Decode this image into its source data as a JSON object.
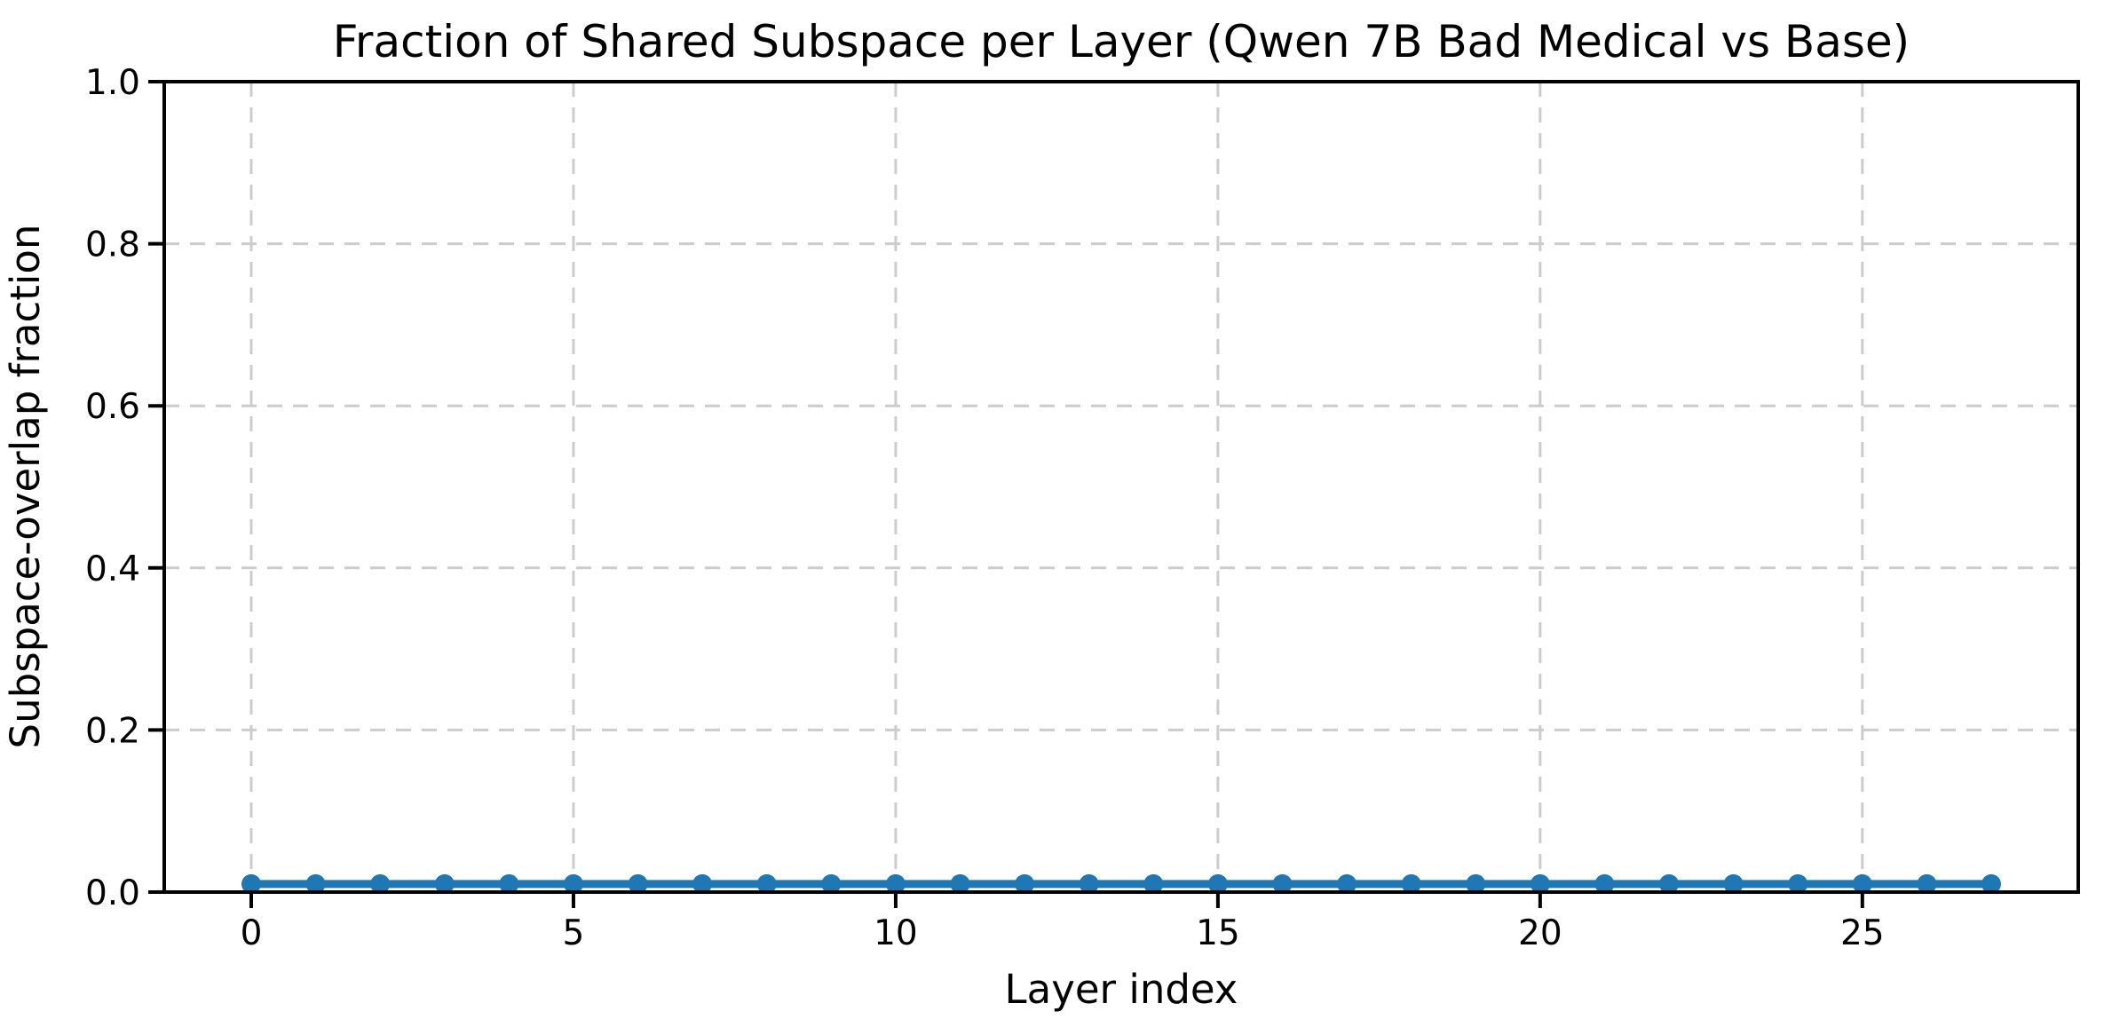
{
  "chart_data": {
    "type": "line",
    "title": "Fraction of Shared Subspace per Layer (Qwen 7B Bad Medical vs Base)",
    "xlabel": "Layer index",
    "ylabel": "Subspace-overlap fraction",
    "x": [
      0,
      1,
      2,
      3,
      4,
      5,
      6,
      7,
      8,
      9,
      10,
      11,
      12,
      13,
      14,
      15,
      16,
      17,
      18,
      19,
      20,
      21,
      22,
      23,
      24,
      25,
      26,
      27
    ],
    "values": [
      0.01,
      0.01,
      0.01,
      0.01,
      0.01,
      0.01,
      0.01,
      0.01,
      0.01,
      0.01,
      0.01,
      0.01,
      0.01,
      0.01,
      0.01,
      0.01,
      0.01,
      0.01,
      0.01,
      0.01,
      0.01,
      0.01,
      0.01,
      0.01,
      0.01,
      0.01,
      0.01,
      0.01
    ],
    "xlim": [
      -1.35,
      28.35
    ],
    "ylim": [
      0.0,
      1.0
    ],
    "xticks": {
      "values": [
        0,
        5,
        10,
        15,
        20,
        25
      ],
      "labels": [
        "0",
        "5",
        "10",
        "15",
        "20",
        "25"
      ]
    },
    "yticks": {
      "values": [
        0.0,
        0.2,
        0.4,
        0.6,
        0.8,
        1.0
      ],
      "labels": [
        "0.0",
        "0.2",
        "0.4",
        "0.6",
        "0.8",
        "1.0"
      ]
    },
    "grid": {
      "visible": true,
      "style": "dashed",
      "color": "#cccccc"
    },
    "legend": {
      "visible": false
    },
    "style": {
      "line_color": "#1f77b4",
      "marker": "circle",
      "marker_color": "#1f77b4",
      "axis_color": "#000000",
      "background": "#ffffff"
    }
  }
}
